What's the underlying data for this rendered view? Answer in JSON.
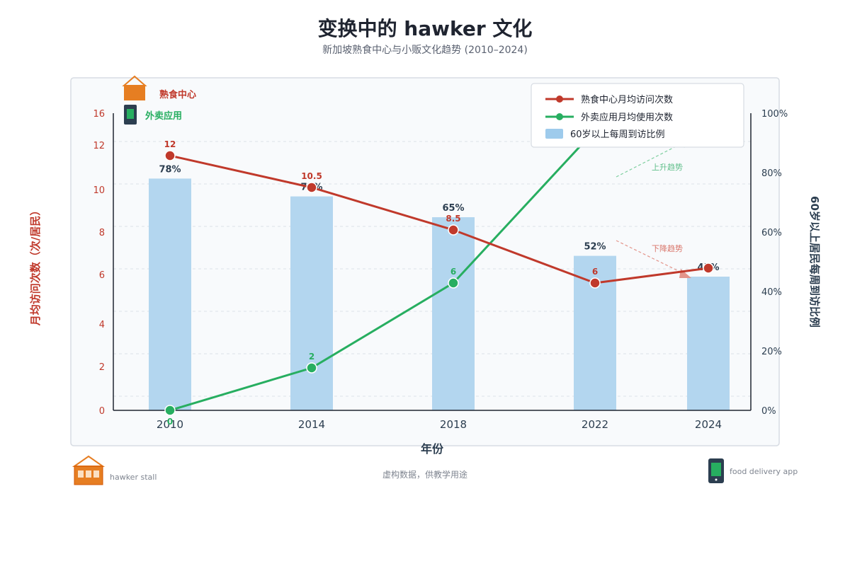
{
  "header": {
    "title": "变换中的 hawker 文化",
    "subtitle": "新加坡熟食中心与小贩文化趋势 (2010–2024)"
  },
  "colors": {
    "hawker": "#c0392b",
    "delivery": "#27ae60",
    "bars": "#b3d6ef",
    "stall_orange": "#e67e22",
    "phone_dark": "#2c3e50"
  },
  "icons": {
    "top_stall_label": "熟食中心",
    "top_phone_label": "外卖应用",
    "bottom_stall_caption": "hawker stall",
    "bottom_phone_caption": "food delivery app"
  },
  "annotations": {
    "up_trend": "上升趋势",
    "down_trend": "下降趋势"
  },
  "footer": {
    "note": "虚构数据，供教学用途"
  },
  "chart_data": {
    "type": "bar",
    "categories": [
      "2010",
      "2014",
      "2018",
      "2022",
      "2024"
    ],
    "xlabel": "年份",
    "ylabel": "月均访问次数（次/居民）",
    "y2label": "60岁以上居民每周到访比例",
    "ylim": [
      0,
      16
    ],
    "y_ticks": [
      0,
      2,
      4,
      6,
      8,
      10,
      12,
      16
    ],
    "y2lim": [
      0,
      100
    ],
    "y2_ticks": [
      "0%",
      "20%",
      "40%",
      "60%",
      "80%",
      "100%"
    ],
    "grid": true,
    "legend_position": "top-right",
    "series": [
      {
        "name": "熟食中心月均访问次数",
        "type": "line",
        "axis": "left",
        "values": [
          12,
          10.5,
          8.5,
          6,
          6.7
        ],
        "labels": [
          "12",
          "10.5",
          "8.5",
          "6",
          ""
        ]
      },
      {
        "name": "外卖应用月均使用次数",
        "type": "line",
        "axis": "left",
        "values": [
          0,
          2,
          6,
          13.2,
          14.2
        ],
        "labels": [
          "0",
          "2",
          "6",
          "",
          ""
        ]
      },
      {
        "name": "60岁以上每周到访比例",
        "type": "bar",
        "axis": "right",
        "values": [
          78,
          72,
          65,
          52,
          45
        ],
        "labels": [
          "78%",
          "72%",
          "65%",
          "52%",
          "45%"
        ]
      }
    ]
  }
}
